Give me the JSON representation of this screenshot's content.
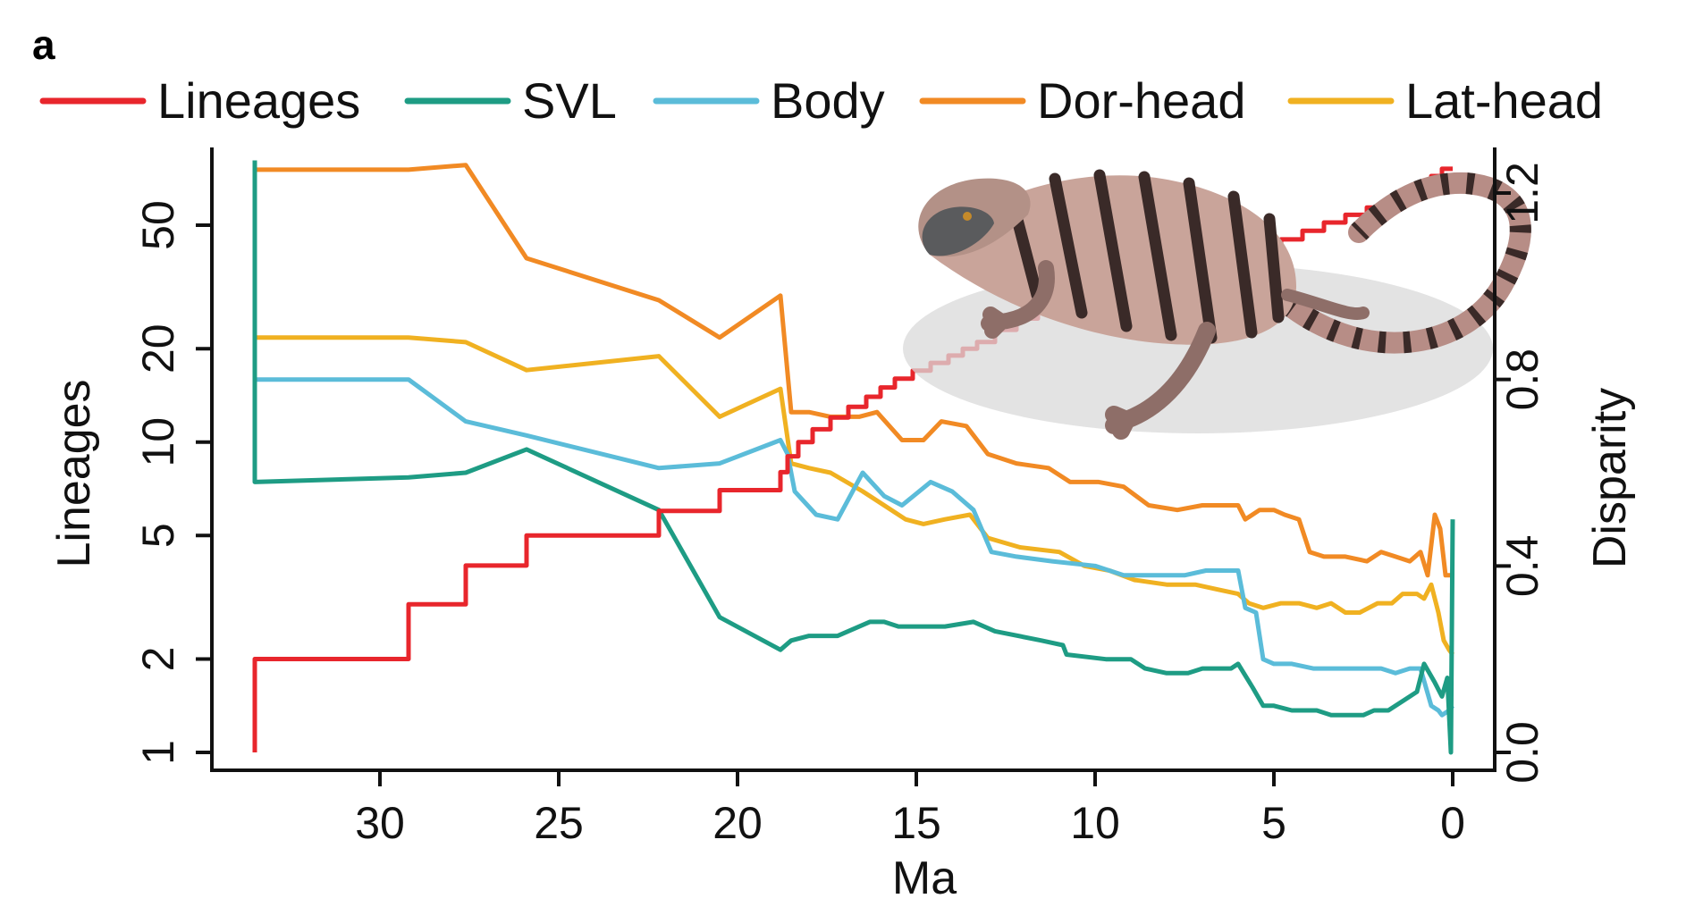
{
  "panel_label": "a",
  "chart_data": {
    "type": "line",
    "xlabel": "Ma",
    "ylabel_left": "Lineages",
    "ylabel_right": "Disparity",
    "x_reversed": true,
    "xlim": [
      34.5,
      -1.3
    ],
    "x_ticks": [
      30,
      25,
      20,
      15,
      10,
      5,
      0
    ],
    "x_tick_labels": [
      "30",
      "25",
      "20",
      "15",
      "10",
      "5",
      "0"
    ],
    "y_left_scale": "log",
    "y_left_ticks": [
      1,
      2,
      5,
      10,
      20,
      50
    ],
    "y_left_tick_labels": [
      "1",
      "2",
      "5",
      "10",
      "20",
      "50"
    ],
    "y_right_ticks": [
      0.0,
      0.4,
      0.8,
      1.2
    ],
    "y_right_tick_labels": [
      "0.0",
      "0.4",
      "0.8",
      "1.2"
    ],
    "legend": {
      "placement": "top",
      "entries": [
        "Lineages",
        "SVL",
        "Body",
        "Dor-head",
        "Lat-head"
      ]
    },
    "colors": {
      "Lineages": "#e8262c",
      "SVL": "#1e9c84",
      "Body": "#5bbcd9",
      "Dor-head": "#f18a24",
      "Lat-head": "#f0b121"
    },
    "series": [
      {
        "name": "Lineages",
        "axis": "left",
        "step": true,
        "points": [
          [
            33.5,
            1
          ],
          [
            33.5,
            2
          ],
          [
            29.2,
            2
          ],
          [
            29.2,
            3
          ],
          [
            27.6,
            3
          ],
          [
            27.6,
            4
          ],
          [
            25.9,
            4
          ],
          [
            25.9,
            5
          ],
          [
            22.2,
            5
          ],
          [
            22.2,
            6
          ],
          [
            20.5,
            6
          ],
          [
            20.5,
            7
          ],
          [
            18.8,
            7
          ],
          [
            18.8,
            8
          ],
          [
            18.6,
            8
          ],
          [
            18.6,
            9
          ],
          [
            18.3,
            9
          ],
          [
            18.3,
            10
          ],
          [
            17.9,
            10
          ],
          [
            17.9,
            11
          ],
          [
            17.4,
            11
          ],
          [
            17.4,
            12
          ],
          [
            16.9,
            12
          ],
          [
            16.9,
            13
          ],
          [
            16.4,
            13
          ],
          [
            16.4,
            14
          ],
          [
            16.0,
            14
          ],
          [
            16.0,
            15
          ],
          [
            15.6,
            15
          ],
          [
            15.6,
            16
          ],
          [
            15.1,
            16
          ],
          [
            15.1,
            17
          ],
          [
            14.6,
            17
          ],
          [
            14.6,
            18
          ],
          [
            14.1,
            18
          ],
          [
            14.1,
            19
          ],
          [
            13.7,
            19
          ],
          [
            13.7,
            20
          ],
          [
            13.3,
            20
          ],
          [
            13.3,
            21
          ],
          [
            12.8,
            21
          ],
          [
            12.8,
            23
          ],
          [
            12.2,
            23
          ],
          [
            12.2,
            25
          ],
          [
            11.6,
            25
          ],
          [
            11.6,
            27
          ],
          [
            10.9,
            27
          ],
          [
            10.9,
            28
          ],
          [
            10.3,
            28
          ],
          [
            10.3,
            30
          ],
          [
            9.4,
            30
          ],
          [
            9.4,
            32
          ],
          [
            8.6,
            32
          ],
          [
            8.6,
            34
          ],
          [
            7.7,
            34
          ],
          [
            7.7,
            36
          ],
          [
            6.8,
            36
          ],
          [
            6.8,
            38
          ],
          [
            6.0,
            38
          ],
          [
            6.0,
            40
          ],
          [
            5.4,
            40
          ],
          [
            5.4,
            42
          ],
          [
            4.8,
            42
          ],
          [
            4.8,
            45
          ],
          [
            4.2,
            45
          ],
          [
            4.2,
            48
          ],
          [
            3.6,
            48
          ],
          [
            3.6,
            51
          ],
          [
            3.0,
            51
          ],
          [
            3.0,
            54
          ],
          [
            2.4,
            54
          ],
          [
            2.4,
            57
          ],
          [
            1.8,
            57
          ],
          [
            1.8,
            60
          ],
          [
            1.4,
            60
          ],
          [
            1.4,
            64
          ],
          [
            1.0,
            64
          ],
          [
            1.0,
            68
          ],
          [
            0.6,
            68
          ],
          [
            0.6,
            72
          ],
          [
            0.3,
            72
          ],
          [
            0.3,
            76
          ],
          [
            0.0,
            76
          ]
        ]
      },
      {
        "name": "SVL",
        "axis": "right",
        "points": [
          [
            33.5,
            1.27
          ],
          [
            33.5,
            0.58
          ],
          [
            29.2,
            0.59
          ],
          [
            27.6,
            0.6
          ],
          [
            25.9,
            0.65
          ],
          [
            22.2,
            0.52
          ],
          [
            20.5,
            0.29
          ],
          [
            18.8,
            0.22
          ],
          [
            18.5,
            0.24
          ],
          [
            18.0,
            0.25
          ],
          [
            17.2,
            0.25
          ],
          [
            16.3,
            0.28
          ],
          [
            15.9,
            0.28
          ],
          [
            15.5,
            0.27
          ],
          [
            14.2,
            0.27
          ],
          [
            13.4,
            0.28
          ],
          [
            12.8,
            0.26
          ],
          [
            11.5,
            0.24
          ],
          [
            10.9,
            0.23
          ],
          [
            10.8,
            0.21
          ],
          [
            9.7,
            0.2
          ],
          [
            9.0,
            0.2
          ],
          [
            8.6,
            0.18
          ],
          [
            8.0,
            0.17
          ],
          [
            7.4,
            0.17
          ],
          [
            7.0,
            0.18
          ],
          [
            6.2,
            0.18
          ],
          [
            6.0,
            0.19
          ],
          [
            5.6,
            0.14
          ],
          [
            5.3,
            0.1
          ],
          [
            5.0,
            0.1
          ],
          [
            4.5,
            0.09
          ],
          [
            3.8,
            0.09
          ],
          [
            3.4,
            0.08
          ],
          [
            3.0,
            0.08
          ],
          [
            2.5,
            0.08
          ],
          [
            2.2,
            0.09
          ],
          [
            1.8,
            0.09
          ],
          [
            1.4,
            0.11
          ],
          [
            1.0,
            0.13
          ],
          [
            0.8,
            0.19
          ],
          [
            0.5,
            0.15
          ],
          [
            0.3,
            0.12
          ],
          [
            0.15,
            0.16
          ],
          [
            0.05,
            0.0
          ],
          [
            0.0,
            0.5
          ]
        ]
      },
      {
        "name": "Body",
        "axis": "right",
        "points": [
          [
            33.5,
            0.8
          ],
          [
            29.2,
            0.8
          ],
          [
            27.6,
            0.71
          ],
          [
            25.9,
            0.68
          ],
          [
            22.2,
            0.61
          ],
          [
            20.5,
            0.62
          ],
          [
            18.8,
            0.67
          ],
          [
            18.6,
            0.64
          ],
          [
            18.4,
            0.56
          ],
          [
            17.8,
            0.51
          ],
          [
            17.2,
            0.5
          ],
          [
            16.5,
            0.6
          ],
          [
            15.9,
            0.55
          ],
          [
            15.4,
            0.53
          ],
          [
            14.6,
            0.58
          ],
          [
            14.0,
            0.56
          ],
          [
            13.4,
            0.52
          ],
          [
            12.9,
            0.43
          ],
          [
            12.2,
            0.42
          ],
          [
            11.2,
            0.41
          ],
          [
            10.0,
            0.4
          ],
          [
            9.2,
            0.38
          ],
          [
            8.5,
            0.38
          ],
          [
            7.5,
            0.38
          ],
          [
            6.9,
            0.39
          ],
          [
            6.0,
            0.39
          ],
          [
            5.8,
            0.31
          ],
          [
            5.5,
            0.3
          ],
          [
            5.3,
            0.2
          ],
          [
            5.0,
            0.19
          ],
          [
            4.5,
            0.19
          ],
          [
            3.9,
            0.18
          ],
          [
            3.2,
            0.18
          ],
          [
            2.5,
            0.18
          ],
          [
            2.0,
            0.18
          ],
          [
            1.6,
            0.17
          ],
          [
            1.2,
            0.18
          ],
          [
            0.9,
            0.18
          ],
          [
            0.6,
            0.1
          ],
          [
            0.4,
            0.09
          ],
          [
            0.3,
            0.08
          ],
          [
            0.1,
            0.09
          ],
          [
            0.0,
            0.1
          ]
        ]
      },
      {
        "name": "Dor-head",
        "axis": "right",
        "points": [
          [
            33.5,
            1.02
          ],
          [
            33.5,
            1.25
          ],
          [
            29.2,
            1.25
          ],
          [
            27.6,
            1.26
          ],
          [
            25.9,
            1.06
          ],
          [
            22.2,
            0.97
          ],
          [
            20.5,
            0.89
          ],
          [
            18.8,
            0.98
          ],
          [
            18.5,
            0.73
          ],
          [
            18.0,
            0.73
          ],
          [
            17.4,
            0.72
          ],
          [
            16.6,
            0.72
          ],
          [
            16.1,
            0.73
          ],
          [
            15.4,
            0.67
          ],
          [
            14.8,
            0.67
          ],
          [
            14.3,
            0.71
          ],
          [
            13.6,
            0.7
          ],
          [
            13.0,
            0.64
          ],
          [
            12.2,
            0.62
          ],
          [
            11.3,
            0.61
          ],
          [
            10.7,
            0.58
          ],
          [
            9.9,
            0.58
          ],
          [
            9.2,
            0.57
          ],
          [
            8.5,
            0.53
          ],
          [
            7.7,
            0.52
          ],
          [
            7.0,
            0.53
          ],
          [
            6.5,
            0.53
          ],
          [
            6.0,
            0.53
          ],
          [
            5.8,
            0.5
          ],
          [
            5.4,
            0.52
          ],
          [
            5.0,
            0.52
          ],
          [
            4.7,
            0.51
          ],
          [
            4.3,
            0.5
          ],
          [
            4.0,
            0.43
          ],
          [
            3.6,
            0.42
          ],
          [
            3.0,
            0.42
          ],
          [
            2.4,
            0.41
          ],
          [
            2.0,
            0.43
          ],
          [
            1.6,
            0.42
          ],
          [
            1.2,
            0.41
          ],
          [
            0.9,
            0.43
          ],
          [
            0.7,
            0.38
          ],
          [
            0.5,
            0.51
          ],
          [
            0.35,
            0.48
          ],
          [
            0.2,
            0.38
          ],
          [
            0.0,
            0.38
          ]
        ]
      },
      {
        "name": "Lat-head",
        "axis": "right",
        "points": [
          [
            33.5,
            0.89
          ],
          [
            29.2,
            0.89
          ],
          [
            27.6,
            0.88
          ],
          [
            25.9,
            0.82
          ],
          [
            22.2,
            0.85
          ],
          [
            20.5,
            0.72
          ],
          [
            18.8,
            0.78
          ],
          [
            18.5,
            0.62
          ],
          [
            18.0,
            0.61
          ],
          [
            17.4,
            0.6
          ],
          [
            16.5,
            0.56
          ],
          [
            15.9,
            0.53
          ],
          [
            15.3,
            0.5
          ],
          [
            14.8,
            0.49
          ],
          [
            14.2,
            0.5
          ],
          [
            13.5,
            0.51
          ],
          [
            13.0,
            0.46
          ],
          [
            12.1,
            0.44
          ],
          [
            11.0,
            0.43
          ],
          [
            10.3,
            0.4
          ],
          [
            9.6,
            0.39
          ],
          [
            8.9,
            0.37
          ],
          [
            8.0,
            0.36
          ],
          [
            7.2,
            0.36
          ],
          [
            6.6,
            0.35
          ],
          [
            6.0,
            0.34
          ],
          [
            5.7,
            0.32
          ],
          [
            5.3,
            0.31
          ],
          [
            4.8,
            0.32
          ],
          [
            4.3,
            0.32
          ],
          [
            3.8,
            0.31
          ],
          [
            3.4,
            0.32
          ],
          [
            3.0,
            0.3
          ],
          [
            2.6,
            0.3
          ],
          [
            2.1,
            0.32
          ],
          [
            1.7,
            0.32
          ],
          [
            1.4,
            0.34
          ],
          [
            1.0,
            0.34
          ],
          [
            0.8,
            0.33
          ],
          [
            0.6,
            0.36
          ],
          [
            0.4,
            0.3
          ],
          [
            0.25,
            0.24
          ],
          [
            0.1,
            0.22
          ],
          [
            0.0,
            0.21
          ]
        ]
      }
    ]
  }
}
